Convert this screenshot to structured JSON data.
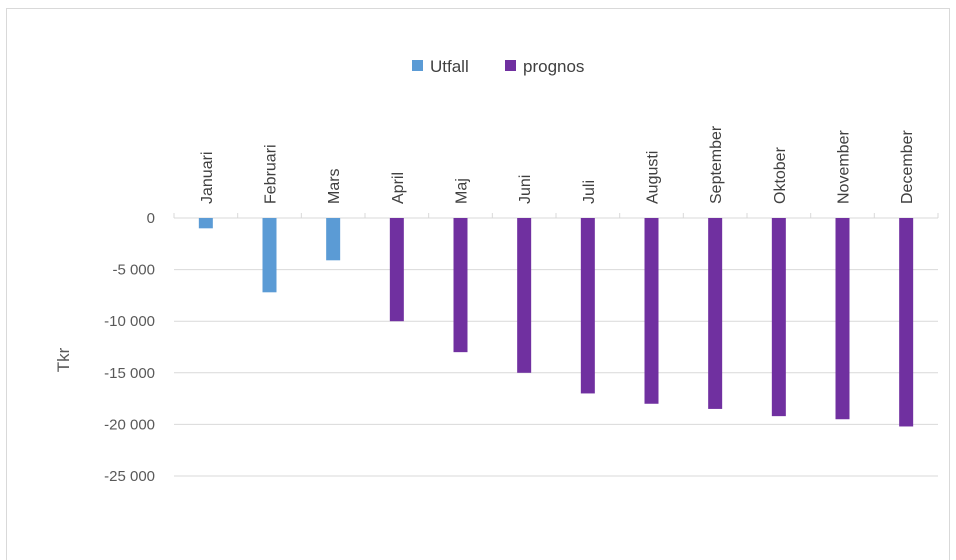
{
  "chart_data": {
    "type": "bar",
    "categories": [
      "Januari",
      "Februari",
      "Mars",
      "April",
      "Maj",
      "Juni",
      "Juli",
      "Augusti",
      "September",
      "Oktober",
      "November",
      "December"
    ],
    "series": [
      {
        "name": "Utfall",
        "color": "#5b9bd5",
        "values": [
          -1000,
          -7200,
          -4100,
          null,
          null,
          null,
          null,
          null,
          null,
          null,
          null,
          null
        ]
      },
      {
        "name": "prognos",
        "color": "#7030a0",
        "values": [
          null,
          null,
          null,
          -10000,
          -13000,
          -15000,
          -17000,
          -18000,
          -18500,
          -19200,
          -19500,
          -20200
        ]
      }
    ],
    "ylabel": "Tkr",
    "ylim": [
      -25000,
      0
    ],
    "yticks": [
      0,
      -5000,
      -10000,
      -15000,
      -20000,
      -25000
    ],
    "ytick_labels": [
      "0",
      "-5 000",
      "-10 000",
      "-15 000",
      "-20 000",
      "-25 000"
    ],
    "grid": true,
    "legend_position": "top"
  }
}
